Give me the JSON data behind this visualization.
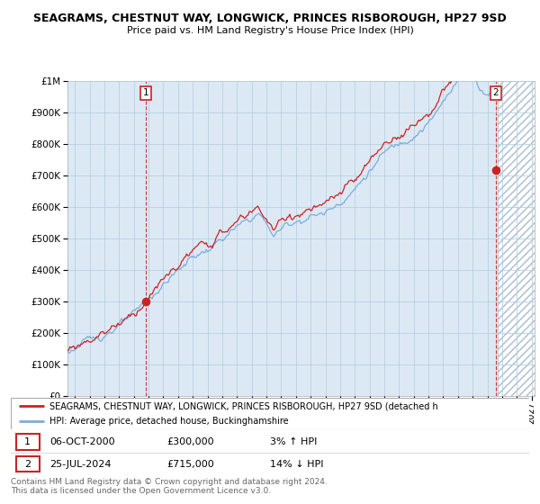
{
  "title": "SEAGRAMS, CHESTNUT WAY, LONGWICK, PRINCES RISBOROUGH, HP27 9SD",
  "subtitle": "Price paid vs. HM Land Registry's House Price Index (HPI)",
  "hpi_color": "#7aaddc",
  "price_color": "#cc2222",
  "sale1_date": "06-OCT-2000",
  "sale1_price": 300000,
  "sale1_pct": "3%",
  "sale1_dir": "↑",
  "sale2_date": "25-JUL-2024",
  "sale2_price": 715000,
  "sale2_dir": "↓",
  "sale2_pct": "14%",
  "legend_label1": "SEAGRAMS, CHESTNUT WAY, LONGWICK, PRINCES RISBOROUGH, HP27 9SD (detached h",
  "legend_label2": "HPI: Average price, detached house, Buckinghamshire",
  "footnote": "Contains HM Land Registry data © Crown copyright and database right 2024.\nThis data is licensed under the Open Government Licence v3.0.",
  "ylim": [
    0,
    1000000
  ],
  "yticks": [
    0,
    100000,
    200000,
    300000,
    400000,
    500000,
    600000,
    700000,
    800000,
    900000,
    1000000
  ],
  "chart_bg": "#dce9f5",
  "grid_color": "#b8cfe0",
  "hatch_color": "#c8d8e8",
  "sale1_marker_x": 2000.83,
  "sale1_marker_y": 300000,
  "sale2_marker_x": 2024.55,
  "sale2_marker_y": 715000,
  "hatch_start": 2024.7,
  "xmin": 1995.5,
  "xmax": 2027.2
}
